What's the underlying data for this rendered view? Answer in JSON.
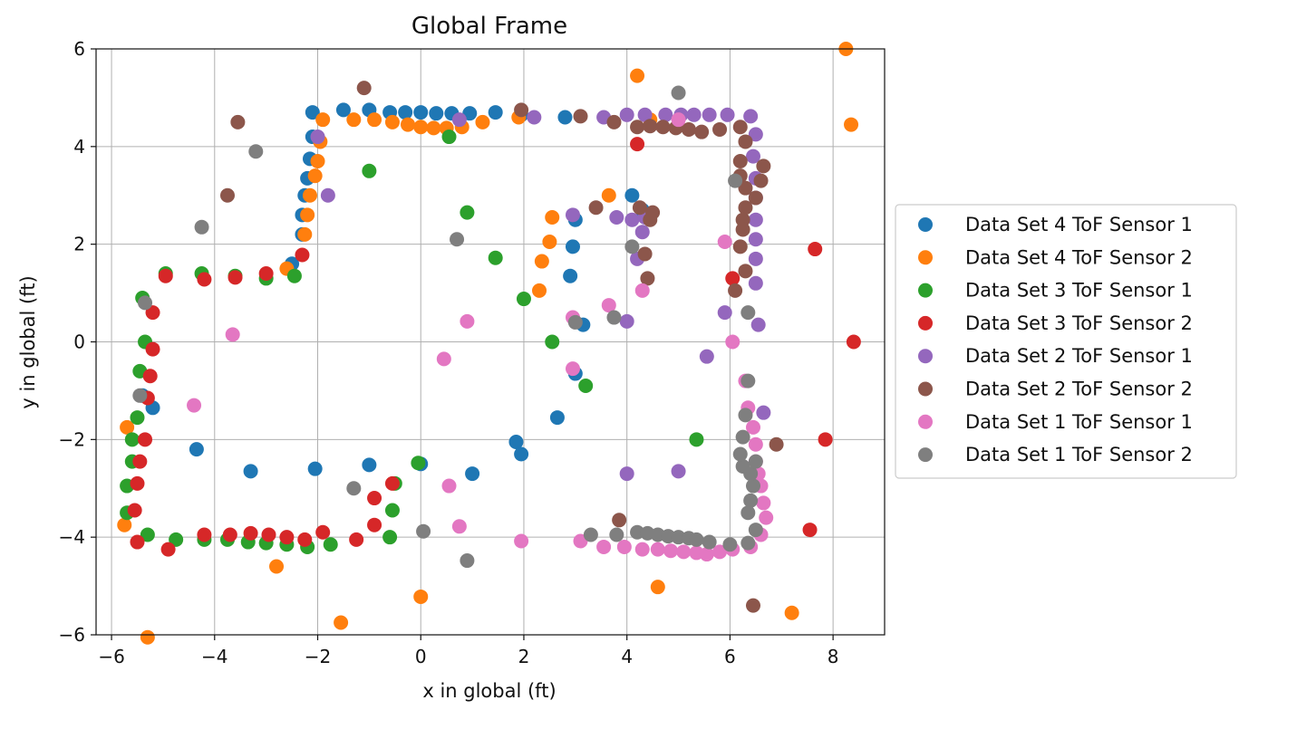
{
  "chart_data": {
    "type": "scatter",
    "title": "Global Frame",
    "xlabel": "x in global (ft)",
    "ylabel": "y in global (ft)",
    "xlim": [
      -6.3,
      9.0
    ],
    "ylim": [
      -6,
      6
    ],
    "xticks": [
      -6,
      -4,
      -2,
      0,
      2,
      4,
      6,
      8
    ],
    "yticks": [
      -6,
      -4,
      -2,
      0,
      2,
      4,
      6
    ],
    "xtick_labels": [
      "−6",
      "−4",
      "−2",
      "0",
      "2",
      "4",
      "6",
      "8"
    ],
    "ytick_labels": [
      "−6",
      "−4",
      "−2",
      "0",
      "2",
      "4",
      "6"
    ],
    "grid": true,
    "legend_position": "outside right",
    "series": [
      {
        "name": "Data Set 4 ToF Sensor 1",
        "color": "#1f77b4",
        "points": [
          [
            -2.1,
            4.7
          ],
          [
            -1.5,
            4.75
          ],
          [
            -1.0,
            4.75
          ],
          [
            -0.6,
            4.7
          ],
          [
            -0.3,
            4.7
          ],
          [
            0.0,
            4.7
          ],
          [
            0.3,
            4.68
          ],
          [
            0.6,
            4.68
          ],
          [
            0.95,
            4.68
          ],
          [
            1.45,
            4.7
          ],
          [
            1.95,
            4.65
          ],
          [
            2.8,
            4.6
          ],
          [
            -2.1,
            4.2
          ],
          [
            -2.15,
            3.75
          ],
          [
            -2.2,
            3.35
          ],
          [
            -2.25,
            3.0
          ],
          [
            -2.3,
            2.6
          ],
          [
            -2.3,
            2.2
          ],
          [
            -2.5,
            1.6
          ],
          [
            -5.4,
            -1.1
          ],
          [
            -5.2,
            -1.35
          ],
          [
            -4.35,
            -2.2
          ],
          [
            -3.3,
            -2.65
          ],
          [
            -2.05,
            -2.6
          ],
          [
            -1.0,
            -2.52
          ],
          [
            0.0,
            -2.5
          ],
          [
            1.0,
            -2.7
          ],
          [
            1.85,
            -2.05
          ],
          [
            1.95,
            -2.3
          ],
          [
            2.65,
            -1.55
          ],
          [
            2.9,
            1.35
          ],
          [
            2.95,
            1.95
          ],
          [
            3.0,
            2.5
          ],
          [
            3.0,
            -0.65
          ],
          [
            3.15,
            0.35
          ],
          [
            4.1,
            3.0
          ],
          [
            4.3,
            2.7
          ]
        ]
      },
      {
        "name": "Data Set 4 ToF Sensor 2",
        "color": "#ff7f0e",
        "points": [
          [
            -1.9,
            4.55
          ],
          [
            -1.3,
            4.55
          ],
          [
            -0.9,
            4.55
          ],
          [
            -0.55,
            4.5
          ],
          [
            -0.25,
            4.45
          ],
          [
            0.0,
            4.4
          ],
          [
            0.25,
            4.38
          ],
          [
            0.5,
            4.38
          ],
          [
            0.8,
            4.4
          ],
          [
            1.2,
            4.5
          ],
          [
            1.9,
            4.6
          ],
          [
            -1.95,
            4.1
          ],
          [
            -2.0,
            3.7
          ],
          [
            -2.05,
            3.4
          ],
          [
            -2.15,
            3.0
          ],
          [
            -2.2,
            2.6
          ],
          [
            -2.25,
            2.2
          ],
          [
            -2.6,
            1.5
          ],
          [
            -5.7,
            -1.75
          ],
          [
            -5.75,
            -3.75
          ],
          [
            -5.3,
            -6.05
          ],
          [
            -2.8,
            -4.6
          ],
          [
            -1.55,
            -5.75
          ],
          [
            0.0,
            -5.22
          ],
          [
            2.35,
            1.65
          ],
          [
            2.3,
            1.05
          ],
          [
            2.5,
            2.05
          ],
          [
            2.55,
            2.55
          ],
          [
            3.65,
            3.0
          ],
          [
            4.2,
            5.45
          ],
          [
            4.45,
            4.55
          ],
          [
            4.6,
            -5.02
          ],
          [
            7.2,
            -5.55
          ],
          [
            8.25,
            6.0
          ],
          [
            8.35,
            4.45
          ]
        ]
      },
      {
        "name": "Data Set 3 ToF Sensor 1",
        "color": "#2ca02c",
        "points": [
          [
            -5.4,
            0.9
          ],
          [
            -5.35,
            0.0
          ],
          [
            -5.45,
            -0.6
          ],
          [
            -5.5,
            -1.55
          ],
          [
            -5.6,
            -2.0
          ],
          [
            -5.6,
            -2.45
          ],
          [
            -5.7,
            -2.95
          ],
          [
            -5.7,
            -3.5
          ],
          [
            -5.3,
            -3.95
          ],
          [
            -4.75,
            -4.05
          ],
          [
            -4.2,
            -4.05
          ],
          [
            -3.75,
            -4.05
          ],
          [
            -3.35,
            -4.1
          ],
          [
            -3.0,
            -4.12
          ],
          [
            -2.6,
            -4.15
          ],
          [
            -2.2,
            -4.2
          ],
          [
            -1.75,
            -4.15
          ],
          [
            -4.95,
            1.4
          ],
          [
            -4.25,
            1.4
          ],
          [
            -3.6,
            1.35
          ],
          [
            -3.0,
            1.3
          ],
          [
            -2.45,
            1.35
          ],
          [
            -1.0,
            3.5
          ],
          [
            0.55,
            4.2
          ],
          [
            0.9,
            2.65
          ],
          [
            1.45,
            1.72
          ],
          [
            2.0,
            0.88
          ],
          [
            2.55,
            0.0
          ],
          [
            3.2,
            -0.9
          ],
          [
            5.35,
            -2.0
          ],
          [
            -0.5,
            -2.9
          ],
          [
            -0.55,
            -3.45
          ],
          [
            -0.6,
            -4.0
          ],
          [
            -0.05,
            -2.48
          ]
        ]
      },
      {
        "name": "Data Set 3 ToF Sensor 2",
        "color": "#d62728",
        "points": [
          [
            -5.2,
            0.6
          ],
          [
            -5.2,
            -0.15
          ],
          [
            -5.25,
            -0.7
          ],
          [
            -5.3,
            -1.15
          ],
          [
            -5.35,
            -2.0
          ],
          [
            -5.45,
            -2.45
          ],
          [
            -5.5,
            -2.9
          ],
          [
            -5.55,
            -3.45
          ],
          [
            -5.5,
            -4.1
          ],
          [
            -4.9,
            -4.25
          ],
          [
            -4.2,
            -3.95
          ],
          [
            -3.7,
            -3.95
          ],
          [
            -3.3,
            -3.92
          ],
          [
            -2.95,
            -3.95
          ],
          [
            -2.6,
            -4.0
          ],
          [
            -2.25,
            -4.05
          ],
          [
            -1.9,
            -3.9
          ],
          [
            -1.25,
            -4.05
          ],
          [
            -0.9,
            -3.75
          ],
          [
            -0.9,
            -3.2
          ],
          [
            -0.55,
            -2.9
          ],
          [
            -4.95,
            1.35
          ],
          [
            -4.2,
            1.28
          ],
          [
            -3.6,
            1.32
          ],
          [
            -3.0,
            1.4
          ],
          [
            -2.3,
            1.78
          ],
          [
            4.2,
            4.05
          ],
          [
            6.05,
            1.3
          ],
          [
            7.55,
            -3.85
          ],
          [
            7.65,
            1.9
          ],
          [
            7.85,
            -2.0
          ],
          [
            8.4,
            0.0
          ]
        ]
      },
      {
        "name": "Data Set 2 ToF Sensor 1",
        "color": "#9467bd",
        "points": [
          [
            -2.0,
            4.2
          ],
          [
            -1.8,
            3.0
          ],
          [
            0.75,
            4.55
          ],
          [
            2.2,
            4.6
          ],
          [
            3.55,
            4.6
          ],
          [
            4.0,
            4.65
          ],
          [
            4.35,
            4.65
          ],
          [
            4.75,
            4.65
          ],
          [
            5.05,
            4.65
          ],
          [
            5.3,
            4.65
          ],
          [
            5.6,
            4.65
          ],
          [
            5.95,
            4.65
          ],
          [
            6.4,
            4.62
          ],
          [
            6.5,
            4.25
          ],
          [
            6.45,
            3.8
          ],
          [
            6.5,
            3.35
          ],
          [
            6.5,
            2.95
          ],
          [
            6.5,
            2.5
          ],
          [
            6.5,
            2.1
          ],
          [
            6.5,
            1.7
          ],
          [
            6.5,
            1.2
          ],
          [
            6.55,
            0.35
          ],
          [
            5.9,
            0.6
          ],
          [
            5.55,
            -0.3
          ],
          [
            6.65,
            -1.45
          ],
          [
            5.0,
            -2.65
          ],
          [
            4.0,
            -2.7
          ],
          [
            4.0,
            0.42
          ],
          [
            4.2,
            1.7
          ],
          [
            4.3,
            2.25
          ],
          [
            4.35,
            2.55
          ],
          [
            3.8,
            2.55
          ],
          [
            2.95,
            2.6
          ],
          [
            4.1,
            2.5
          ]
        ]
      },
      {
        "name": "Data Set 2 ToF Sensor 2",
        "color": "#8c564b",
        "points": [
          [
            -1.1,
            5.2
          ],
          [
            -3.55,
            4.5
          ],
          [
            -3.75,
            3.0
          ],
          [
            1.95,
            4.75
          ],
          [
            3.1,
            4.62
          ],
          [
            3.75,
            4.5
          ],
          [
            4.2,
            4.4
          ],
          [
            4.45,
            4.42
          ],
          [
            4.7,
            4.4
          ],
          [
            4.95,
            4.38
          ],
          [
            5.2,
            4.35
          ],
          [
            5.45,
            4.3
          ],
          [
            5.8,
            4.35
          ],
          [
            6.2,
            4.4
          ],
          [
            6.3,
            4.1
          ],
          [
            6.2,
            3.7
          ],
          [
            6.2,
            3.4
          ],
          [
            6.3,
            3.15
          ],
          [
            6.3,
            2.75
          ],
          [
            6.25,
            2.5
          ],
          [
            6.25,
            2.3
          ],
          [
            6.2,
            1.95
          ],
          [
            6.3,
            1.45
          ],
          [
            6.1,
            1.05
          ],
          [
            6.5,
            2.95
          ],
          [
            6.6,
            3.3
          ],
          [
            6.65,
            3.6
          ],
          [
            6.9,
            -2.1
          ],
          [
            6.45,
            -5.4
          ],
          [
            3.85,
            -3.65
          ],
          [
            4.4,
            1.3
          ],
          [
            4.35,
            1.8
          ],
          [
            4.45,
            2.5
          ],
          [
            4.5,
            2.65
          ],
          [
            4.25,
            2.75
          ],
          [
            3.4,
            2.75
          ]
        ]
      },
      {
        "name": "Data Set 1 ToF Sensor 1",
        "color": "#e377c2",
        "points": [
          [
            -3.65,
            0.15
          ],
          [
            -4.4,
            -1.3
          ],
          [
            0.45,
            -0.35
          ],
          [
            0.9,
            0.42
          ],
          [
            0.55,
            -2.95
          ],
          [
            0.75,
            -3.78
          ],
          [
            1.95,
            -4.08
          ],
          [
            2.95,
            -0.55
          ],
          [
            2.95,
            0.5
          ],
          [
            3.1,
            -4.08
          ],
          [
            3.55,
            -4.2
          ],
          [
            3.95,
            -4.2
          ],
          [
            4.3,
            -4.25
          ],
          [
            4.6,
            -4.25
          ],
          [
            4.85,
            -4.28
          ],
          [
            5.1,
            -4.3
          ],
          [
            5.35,
            -4.32
          ],
          [
            5.55,
            -4.35
          ],
          [
            5.8,
            -4.3
          ],
          [
            6.05,
            -4.25
          ],
          [
            6.4,
            -4.2
          ],
          [
            6.6,
            -3.95
          ],
          [
            6.7,
            -3.6
          ],
          [
            6.65,
            -3.3
          ],
          [
            6.6,
            -2.95
          ],
          [
            6.55,
            -2.7
          ],
          [
            6.5,
            -2.45
          ],
          [
            6.5,
            -2.1
          ],
          [
            6.45,
            -1.75
          ],
          [
            6.35,
            -1.35
          ],
          [
            6.3,
            -0.8
          ],
          [
            5.9,
            2.05
          ],
          [
            6.05,
            0.0
          ],
          [
            3.65,
            0.75
          ],
          [
            4.3,
            1.05
          ],
          [
            5.0,
            4.55
          ]
        ]
      },
      {
        "name": "Data Set 1 ToF Sensor 2",
        "color": "#7f7f7f",
        "points": [
          [
            -3.2,
            3.9
          ],
          [
            -4.25,
            2.35
          ],
          [
            -5.35,
            0.8
          ],
          [
            -5.45,
            -1.1
          ],
          [
            -1.3,
            -3.0
          ],
          [
            0.05,
            -3.88
          ],
          [
            0.9,
            -4.48
          ],
          [
            0.7,
            2.1
          ],
          [
            3.0,
            0.4
          ],
          [
            3.3,
            -3.95
          ],
          [
            3.75,
            0.5
          ],
          [
            3.8,
            -3.95
          ],
          [
            4.2,
            -3.9
          ],
          [
            4.4,
            -3.92
          ],
          [
            4.6,
            -3.95
          ],
          [
            4.8,
            -3.98
          ],
          [
            5.0,
            -4.0
          ],
          [
            5.2,
            -4.02
          ],
          [
            5.35,
            -4.05
          ],
          [
            5.6,
            -4.1
          ],
          [
            6.0,
            -4.15
          ],
          [
            6.35,
            -4.12
          ],
          [
            6.35,
            -3.5
          ],
          [
            6.4,
            -3.25
          ],
          [
            6.45,
            -2.95
          ],
          [
            6.4,
            -2.7
          ],
          [
            6.5,
            -2.45
          ],
          [
            6.25,
            -2.55
          ],
          [
            6.2,
            -2.3
          ],
          [
            6.25,
            -1.95
          ],
          [
            6.3,
            -1.5
          ],
          [
            6.35,
            -0.8
          ],
          [
            6.35,
            0.6
          ],
          [
            4.1,
            1.95
          ],
          [
            6.1,
            3.3
          ],
          [
            5.0,
            5.1
          ],
          [
            6.5,
            -3.85
          ]
        ]
      }
    ]
  }
}
